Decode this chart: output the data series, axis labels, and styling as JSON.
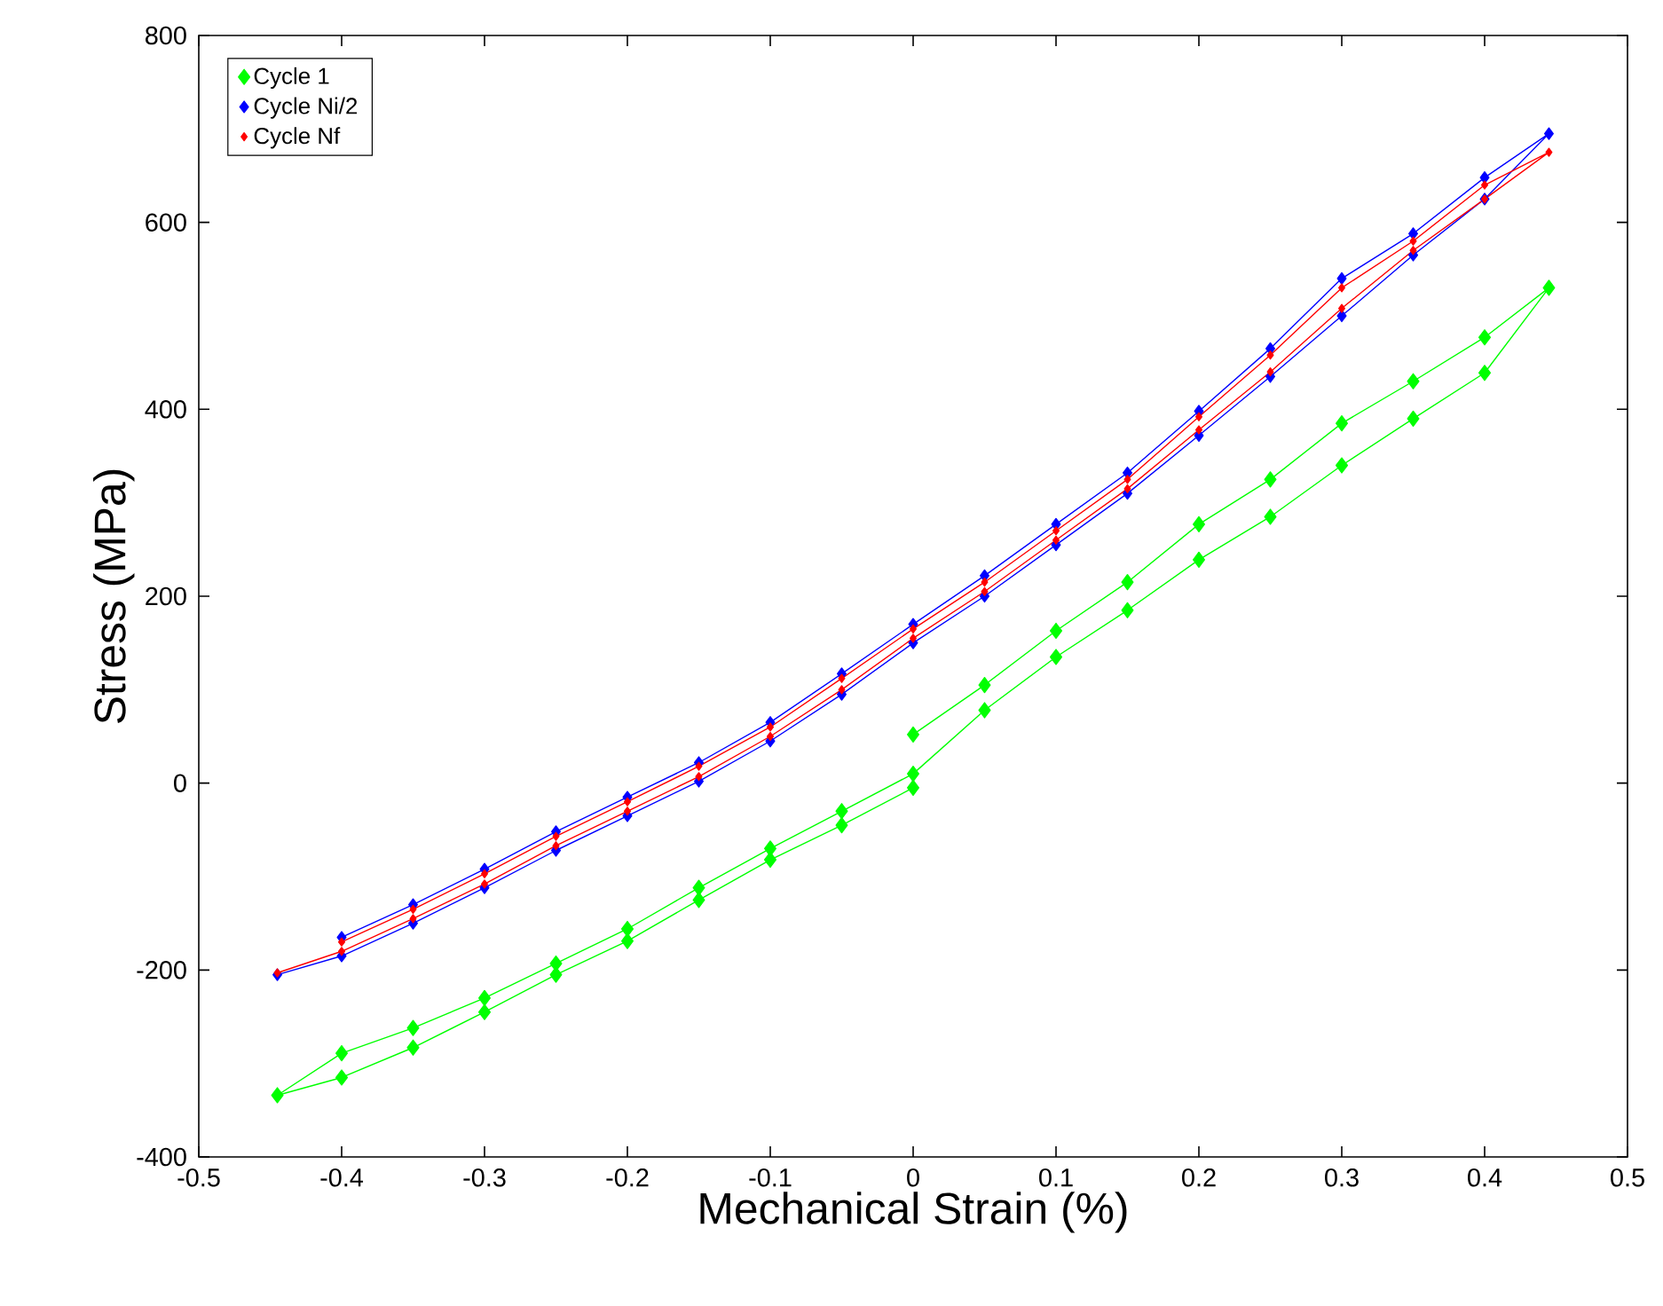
{
  "chart_data": {
    "type": "line",
    "xlabel": "Mechanical Strain (%)",
    "ylabel": "Stress (MPa)",
    "xlim": [
      -0.5,
      0.5
    ],
    "ylim": [
      -400,
      800
    ],
    "xticks": [
      -0.5,
      -0.4,
      -0.3,
      -0.2,
      -0.1,
      0,
      0.1,
      0.2,
      0.3,
      0.4,
      0.5
    ],
    "yticks": [
      -400,
      -200,
      0,
      200,
      400,
      600,
      800
    ],
    "grid": false,
    "legend": "top left",
    "marker": "diamond",
    "line_style": "solid",
    "series": [
      {
        "name": "Cycle 1",
        "color": "#00ff00",
        "x": [
          0,
          0.05,
          0.1,
          0.15,
          0.2,
          0.25,
          0.3,
          0.35,
          0.4,
          0.445,
          0.4,
          0.35,
          0.3,
          0.25,
          0.2,
          0.15,
          0.1,
          0.05,
          0,
          -0.05,
          -0.1,
          -0.15,
          -0.2,
          -0.25,
          -0.3,
          -0.35,
          -0.4,
          -0.445,
          -0.4,
          -0.35,
          -0.3,
          -0.25,
          -0.2,
          -0.15,
          -0.1,
          -0.05,
          0
        ],
        "values": [
          52,
          105,
          163,
          215,
          277,
          325,
          385,
          430,
          477,
          530,
          439,
          390,
          340,
          285,
          239,
          185,
          135,
          78,
          10,
          -30,
          -70,
          -112,
          -156,
          -193,
          -230,
          -262,
          -289,
          -334,
          -315,
          -283,
          -245,
          -205,
          -169,
          -125,
          -82,
          -45,
          -5
        ]
      },
      {
        "name": "Cycle Ni/2",
        "color": "#0000ff",
        "x": [
          -0.445,
          -0.4,
          -0.35,
          -0.3,
          -0.25,
          -0.2,
          -0.15,
          -0.1,
          -0.05,
          0,
          0.05,
          0.1,
          0.15,
          0.2,
          0.25,
          0.3,
          0.35,
          0.4,
          0.445,
          0.4,
          0.35,
          0.3,
          0.25,
          0.2,
          0.15,
          0.1,
          0.05,
          0,
          -0.05,
          -0.1,
          -0.15,
          -0.2,
          -0.25,
          -0.3,
          -0.35,
          -0.4
        ],
        "values": [
          -205,
          -185,
          -150,
          -112,
          -72,
          -35,
          2,
          45,
          95,
          150,
          200,
          255,
          310,
          372,
          435,
          500,
          565,
          625,
          695,
          648,
          588,
          540,
          465,
          398,
          332,
          277,
          222,
          170,
          117,
          65,
          22,
          -15,
          -52,
          -92,
          -130,
          -165
        ]
      },
      {
        "name": "Cycle Nf",
        "color": "#ff0000",
        "x": [
          -0.445,
          -0.4,
          -0.35,
          -0.3,
          -0.25,
          -0.2,
          -0.15,
          -0.1,
          -0.05,
          0,
          0.05,
          0.1,
          0.15,
          0.2,
          0.25,
          0.3,
          0.35,
          0.4,
          0.445,
          0.4,
          0.35,
          0.3,
          0.25,
          0.2,
          0.15,
          0.1,
          0.05,
          0,
          -0.05,
          -0.1,
          -0.15,
          -0.2,
          -0.25,
          -0.3,
          -0.35,
          -0.4
        ],
        "values": [
          -203,
          -180,
          -145,
          -108,
          -67,
          -30,
          7,
          50,
          100,
          155,
          205,
          260,
          315,
          378,
          440,
          508,
          570,
          625,
          675,
          640,
          580,
          530,
          458,
          392,
          325,
          270,
          215,
          165,
          112,
          60,
          18,
          -20,
          -57,
          -97,
          -135,
          -170
        ]
      }
    ]
  }
}
